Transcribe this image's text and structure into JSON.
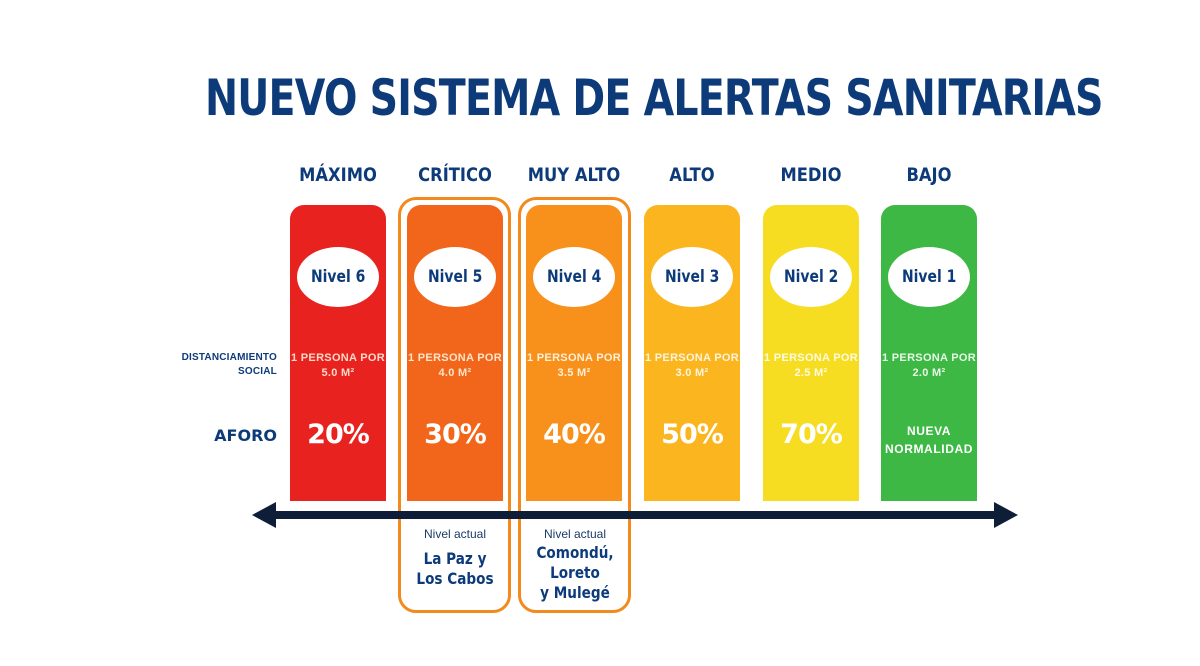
{
  "title": "NUEVO SISTEMA DE ALERTAS SANITARIAS",
  "row_labels": {
    "distanciamiento": [
      "DISTANCIAMIENTO",
      "SOCIAL"
    ],
    "aforo": "AFORO"
  },
  "levels": [
    {
      "name": "MÁXIMO",
      "badge": "Nivel 6",
      "dist_1": "1 PERSONA POR",
      "dist_2": "5.0 M²",
      "aforo": "20%",
      "color": "#e8231f",
      "text_color": "#ffd9c8"
    },
    {
      "name": "CRÍTICO",
      "badge": "Nivel 5",
      "dist_1": "1 PERSONA POR",
      "dist_2": "4.0 M²",
      "aforo": "30%",
      "color": "#f2661b",
      "text_color": "#ffe4c9"
    },
    {
      "name": "MUY ALTO",
      "badge": "Nivel 4",
      "dist_1": "1 PERSONA POR",
      "dist_2": "3.5 M²",
      "aforo": "40%",
      "color": "#f7911c",
      "text_color": "#fff0d6"
    },
    {
      "name": "ALTO",
      "badge": "Nivel 3",
      "dist_1": "1 PERSONA POR",
      "dist_2": "3.0 M²",
      "aforo": "50%",
      "color": "#fab51f",
      "text_color": "#fff5dc"
    },
    {
      "name": "MEDIO",
      "badge": "Nivel 2",
      "dist_1": "1 PERSONA POR",
      "dist_2": "2.5 M²",
      "aforo": "70%",
      "color": "#f6dd22",
      "text_color": "#fffbe0"
    },
    {
      "name": "BAJO",
      "badge": "Nivel 1",
      "dist_1": "1 PERSONA POR",
      "dist_2": "2.0 M²",
      "aforo_1": "NUEVA",
      "aforo_2": "NORMALIDAD",
      "color": "#3db845",
      "text_color": "#e8f8e6"
    }
  ],
  "current": [
    {
      "label": "Nivel actual",
      "places": [
        "La Paz y",
        "Los Cabos"
      ]
    },
    {
      "label": "Nivel actual",
      "places": [
        "Comondú,",
        "Loreto",
        "y Mulegé"
      ]
    }
  ],
  "colors": {
    "navy": "#0d3b7a",
    "outline": "#f28a1e",
    "arrow": "#0f1e38"
  }
}
